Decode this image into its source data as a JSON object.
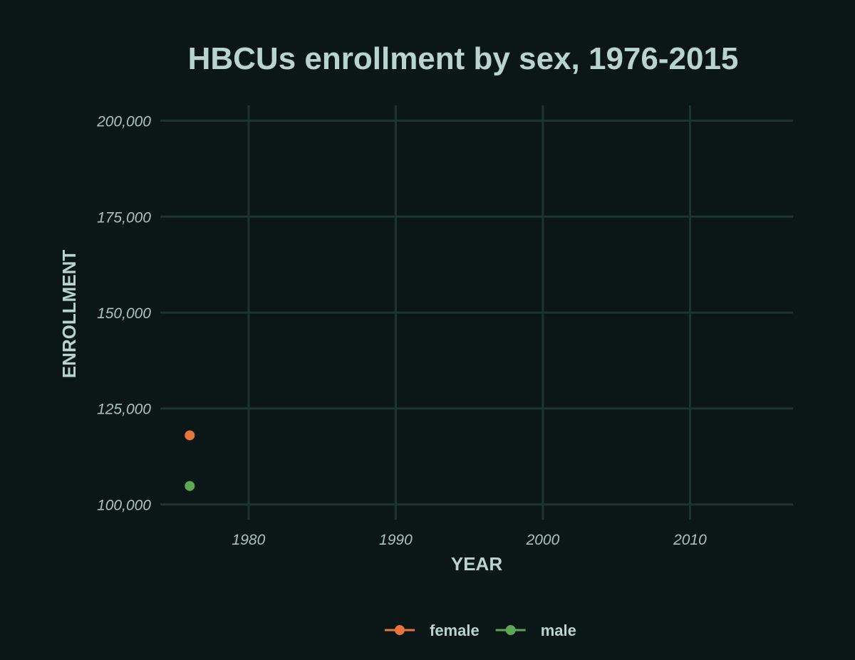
{
  "chart_data": {
    "type": "line",
    "title": "HBCUs enrollment by sex, 1976-2015",
    "xlabel": "YEAR",
    "ylabel": "ENROLLMENT",
    "xlim": [
      1974,
      2017
    ],
    "ylim": [
      96000,
      204000
    ],
    "x_ticks": [
      1980,
      1990,
      2000,
      2010
    ],
    "x_tick_labels": [
      "1980",
      "1990",
      "2000",
      "2010"
    ],
    "y_ticks": [
      100000,
      125000,
      150000,
      175000,
      200000
    ],
    "y_tick_labels": [
      "100,000",
      "125,000",
      "150,000",
      "175,000",
      "200,000"
    ],
    "grid": true,
    "legend_position": "bottom",
    "series": [
      {
        "name": "female",
        "color": "#e5743e",
        "points": [
          {
            "x": 1976,
            "y": 118000
          }
        ]
      },
      {
        "name": "male",
        "color": "#5ea755",
        "points": [
          {
            "x": 1976,
            "y": 104800
          }
        ]
      }
    ],
    "colors": {
      "background": "#0b1717",
      "grid": "#1c3331",
      "text": "#b9d3d1"
    }
  }
}
